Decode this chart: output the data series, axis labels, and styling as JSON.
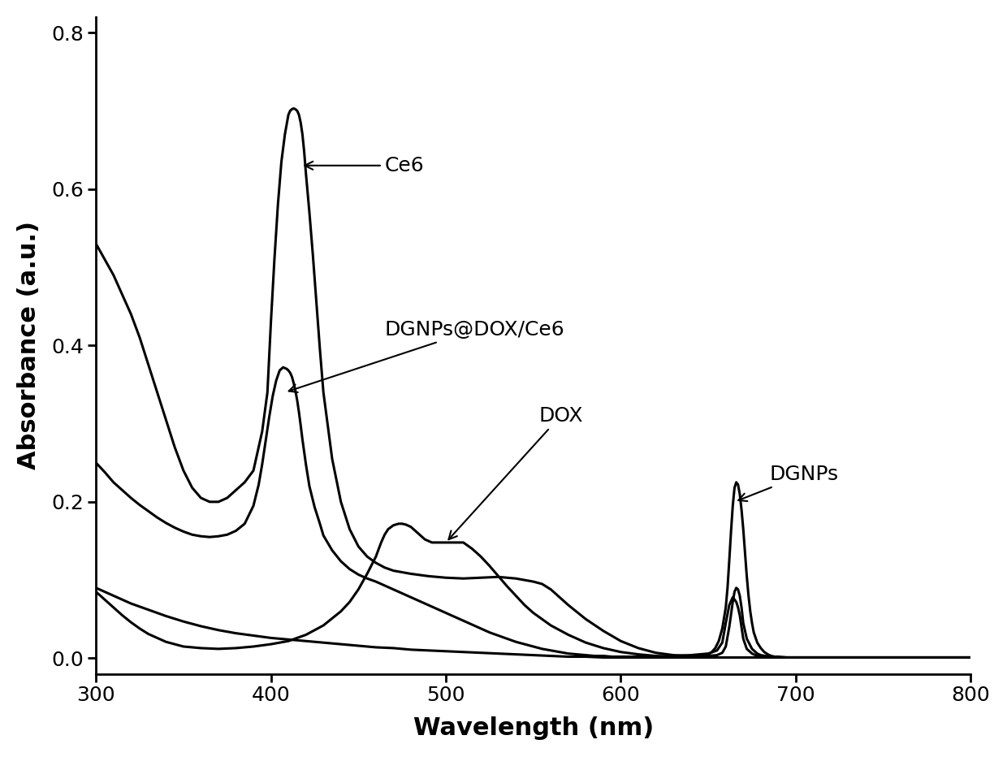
{
  "title": "",
  "xlabel": "Wavelength (nm)",
  "ylabel": "Absorbance (a.u.)",
  "xlim": [
    300,
    800
  ],
  "ylim": [
    -0.02,
    0.82
  ],
  "yticks": [
    0.0,
    0.2,
    0.4,
    0.6,
    0.8
  ],
  "xticks": [
    300,
    400,
    500,
    600,
    700,
    800
  ],
  "line_color": "#000000",
  "line_width": 2.2,
  "background_color": "#ffffff",
  "Ce6_x": [
    300,
    305,
    310,
    315,
    320,
    325,
    330,
    335,
    340,
    345,
    350,
    355,
    360,
    365,
    370,
    375,
    380,
    385,
    390,
    395,
    398,
    400,
    402,
    404,
    406,
    408,
    410,
    411,
    412,
    413,
    414,
    415,
    416,
    417,
    418,
    419,
    420,
    422,
    424,
    426,
    428,
    430,
    435,
    440,
    445,
    450,
    455,
    460,
    465,
    470,
    480,
    490,
    500,
    510,
    520,
    530,
    540,
    550,
    555,
    560,
    565,
    570,
    580,
    590,
    600,
    610,
    620,
    630,
    640,
    650,
    655,
    658,
    660,
    662,
    664,
    665,
    666,
    667,
    668,
    669,
    670,
    672,
    675,
    678,
    680,
    685,
    690,
    700,
    720,
    750,
    800
  ],
  "Ce6_y": [
    0.53,
    0.51,
    0.49,
    0.465,
    0.44,
    0.41,
    0.375,
    0.34,
    0.305,
    0.27,
    0.24,
    0.218,
    0.205,
    0.2,
    0.2,
    0.205,
    0.215,
    0.225,
    0.24,
    0.29,
    0.34,
    0.43,
    0.51,
    0.58,
    0.635,
    0.67,
    0.695,
    0.7,
    0.702,
    0.703,
    0.702,
    0.7,
    0.695,
    0.685,
    0.67,
    0.648,
    0.62,
    0.57,
    0.515,
    0.455,
    0.395,
    0.34,
    0.255,
    0.2,
    0.165,
    0.143,
    0.13,
    0.122,
    0.116,
    0.112,
    0.108,
    0.105,
    0.103,
    0.102,
    0.103,
    0.104,
    0.102,
    0.098,
    0.095,
    0.088,
    0.078,
    0.068,
    0.05,
    0.035,
    0.022,
    0.013,
    0.007,
    0.004,
    0.003,
    0.003,
    0.004,
    0.007,
    0.015,
    0.04,
    0.072,
    0.085,
    0.09,
    0.088,
    0.08,
    0.065,
    0.045,
    0.025,
    0.012,
    0.006,
    0.004,
    0.002,
    0.001,
    0.001,
    0.001,
    0.001,
    0.001
  ],
  "DGNPs_DOX_Ce6_x": [
    300,
    305,
    310,
    315,
    320,
    325,
    330,
    335,
    340,
    345,
    350,
    355,
    360,
    365,
    370,
    375,
    380,
    385,
    390,
    393,
    395,
    397,
    399,
    401,
    403,
    405,
    407,
    409,
    410,
    411,
    412,
    413,
    414,
    415,
    416,
    417,
    418,
    420,
    422,
    425,
    428,
    430,
    435,
    440,
    445,
    450,
    455,
    460,
    465,
    470,
    475,
    480,
    485,
    490,
    495,
    500,
    505,
    510,
    515,
    520,
    525,
    530,
    535,
    540,
    545,
    550,
    555,
    560,
    565,
    570,
    575,
    580,
    585,
    590,
    595,
    600,
    610,
    620,
    630,
    640,
    650,
    655,
    658,
    660,
    662,
    664,
    666,
    667,
    668,
    669,
    670,
    672,
    675,
    678,
    680,
    685,
    690,
    700,
    720,
    750,
    800
  ],
  "DGNPs_DOX_Ce6_y": [
    0.25,
    0.238,
    0.225,
    0.215,
    0.205,
    0.196,
    0.188,
    0.18,
    0.173,
    0.167,
    0.162,
    0.158,
    0.156,
    0.155,
    0.156,
    0.158,
    0.163,
    0.172,
    0.195,
    0.222,
    0.248,
    0.278,
    0.308,
    0.335,
    0.355,
    0.368,
    0.372,
    0.37,
    0.368,
    0.365,
    0.36,
    0.352,
    0.342,
    0.33,
    0.315,
    0.298,
    0.28,
    0.248,
    0.22,
    0.193,
    0.172,
    0.157,
    0.138,
    0.124,
    0.114,
    0.107,
    0.102,
    0.098,
    0.093,
    0.088,
    0.083,
    0.078,
    0.073,
    0.068,
    0.063,
    0.058,
    0.053,
    0.048,
    0.043,
    0.038,
    0.033,
    0.029,
    0.025,
    0.021,
    0.018,
    0.015,
    0.012,
    0.01,
    0.008,
    0.006,
    0.005,
    0.004,
    0.003,
    0.003,
    0.002,
    0.002,
    0.002,
    0.002,
    0.003,
    0.004,
    0.006,
    0.01,
    0.02,
    0.045,
    0.068,
    0.078,
    0.072,
    0.065,
    0.055,
    0.04,
    0.025,
    0.012,
    0.006,
    0.003,
    0.002,
    0.001,
    0.001,
    0.001,
    0.001,
    0.001,
    0.001
  ],
  "DOX_x": [
    300,
    305,
    310,
    315,
    320,
    325,
    330,
    335,
    340,
    345,
    350,
    360,
    370,
    380,
    390,
    400,
    410,
    420,
    430,
    440,
    445,
    450,
    455,
    460,
    463,
    465,
    467,
    470,
    473,
    475,
    477,
    480,
    482,
    484,
    486,
    488,
    490,
    492,
    494,
    496,
    498,
    500,
    502,
    504,
    506,
    508,
    510,
    515,
    520,
    525,
    530,
    535,
    540,
    545,
    550,
    555,
    560,
    565,
    570,
    575,
    580,
    590,
    600,
    610,
    620,
    630,
    640,
    650,
    660,
    670,
    680,
    700,
    750,
    800
  ],
  "DOX_y": [
    0.085,
    0.075,
    0.065,
    0.055,
    0.046,
    0.038,
    0.031,
    0.026,
    0.021,
    0.018,
    0.015,
    0.013,
    0.012,
    0.013,
    0.015,
    0.018,
    0.022,
    0.03,
    0.042,
    0.06,
    0.072,
    0.088,
    0.108,
    0.13,
    0.148,
    0.158,
    0.165,
    0.17,
    0.172,
    0.172,
    0.171,
    0.168,
    0.164,
    0.16,
    0.156,
    0.152,
    0.15,
    0.148,
    0.148,
    0.148,
    0.148,
    0.148,
    0.148,
    0.148,
    0.148,
    0.148,
    0.148,
    0.14,
    0.13,
    0.118,
    0.105,
    0.092,
    0.08,
    0.068,
    0.058,
    0.05,
    0.042,
    0.036,
    0.03,
    0.025,
    0.02,
    0.013,
    0.008,
    0.005,
    0.003,
    0.002,
    0.001,
    0.001,
    0.001,
    0.001,
    0.001,
    0.001,
    0.001,
    0.001
  ],
  "DGNPs_x": [
    300,
    305,
    310,
    315,
    320,
    325,
    330,
    340,
    350,
    360,
    370,
    380,
    390,
    400,
    410,
    420,
    430,
    440,
    450,
    460,
    470,
    480,
    490,
    500,
    510,
    520,
    530,
    540,
    550,
    560,
    570,
    580,
    590,
    600,
    610,
    620,
    625,
    630,
    635,
    640,
    645,
    648,
    650,
    652,
    654,
    656,
    658,
    660,
    661,
    662,
    663,
    664,
    665,
    666,
    667,
    668,
    669,
    670,
    671,
    672,
    673,
    674,
    675,
    676,
    678,
    680,
    682,
    684,
    686,
    688,
    690,
    695,
    700,
    710,
    720,
    750,
    800
  ],
  "DGNPs_y": [
    0.09,
    0.085,
    0.08,
    0.075,
    0.07,
    0.066,
    0.062,
    0.054,
    0.047,
    0.041,
    0.036,
    0.032,
    0.029,
    0.026,
    0.024,
    0.022,
    0.02,
    0.018,
    0.016,
    0.014,
    0.013,
    0.011,
    0.01,
    0.009,
    0.008,
    0.007,
    0.006,
    0.005,
    0.004,
    0.003,
    0.002,
    0.002,
    0.001,
    0.001,
    0.001,
    0.001,
    0.001,
    0.001,
    0.001,
    0.001,
    0.002,
    0.003,
    0.005,
    0.008,
    0.013,
    0.022,
    0.038,
    0.065,
    0.09,
    0.125,
    0.162,
    0.195,
    0.218,
    0.225,
    0.222,
    0.21,
    0.19,
    0.165,
    0.135,
    0.105,
    0.08,
    0.06,
    0.045,
    0.033,
    0.02,
    0.013,
    0.008,
    0.005,
    0.003,
    0.002,
    0.002,
    0.001,
    0.001,
    0.001,
    0.001,
    0.001,
    0.001
  ]
}
